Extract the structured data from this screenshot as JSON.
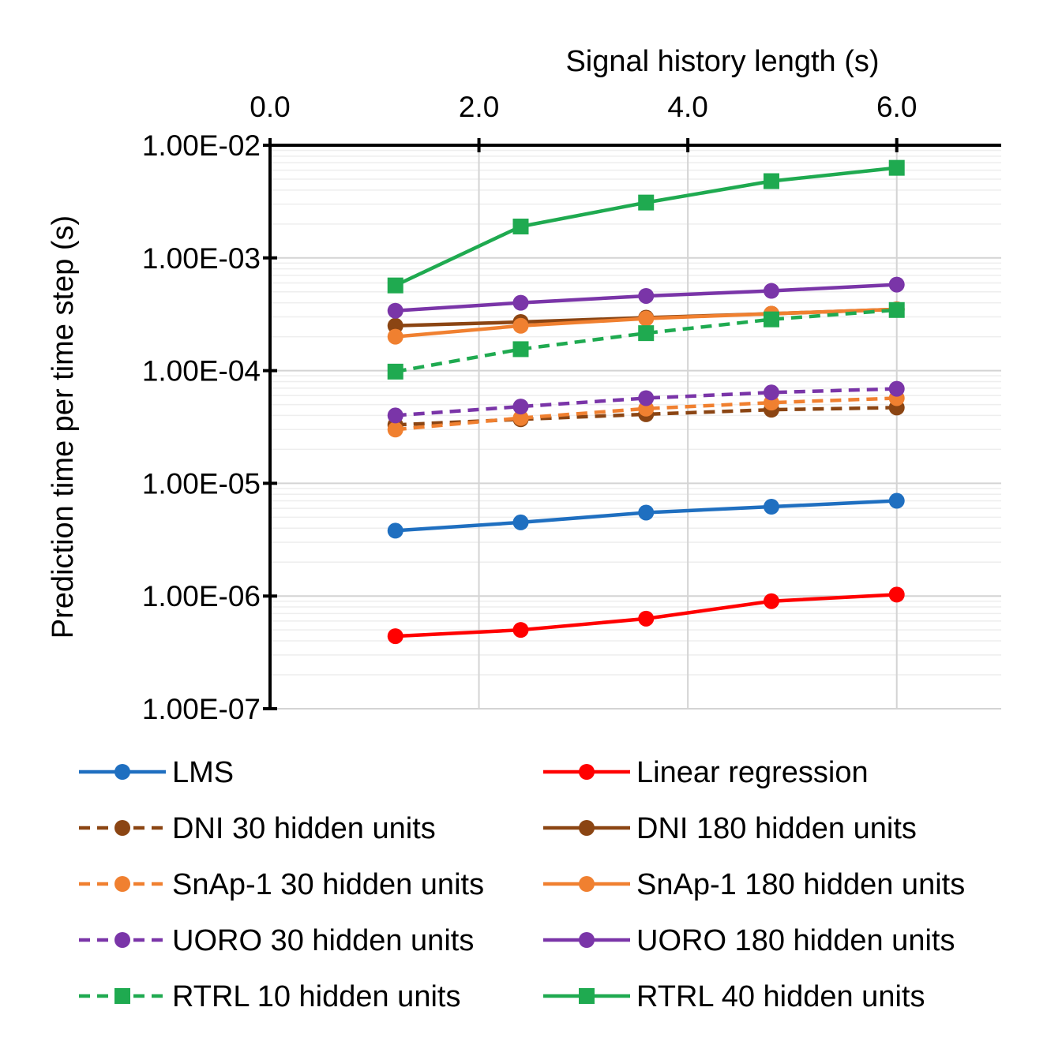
{
  "chart_data": {
    "type": "line",
    "title": "",
    "xlabel": "Signal history length (s)",
    "ylabel": "Prediction time per time step (s)",
    "xlim": [
      0,
      7
    ],
    "ylim": [
      1e-07,
      0.01
    ],
    "y_scale": "log",
    "x_axis_position": "top",
    "grid": true,
    "legend_position": "bottom",
    "x_tick_labels": [
      "0.0",
      "2.0",
      "4.0",
      "6.0"
    ],
    "y_tick_labels": [
      "1.00E-02",
      "1.00E-03",
      "1.00E-04",
      "1.00E-05",
      "1.00E-06",
      "1.00E-07"
    ],
    "x": [
      1.2,
      2.4,
      3.6,
      4.8,
      6.0
    ],
    "series": [
      {
        "name": "LMS",
        "color": "#1f6fc0",
        "dash": "solid",
        "marker": "circle",
        "values": [
          3.8e-06,
          4.5e-06,
          5.5e-06,
          6.2e-06,
          7e-06
        ]
      },
      {
        "name": "Linear regression",
        "color": "#ff0000",
        "dash": "solid",
        "marker": "circle",
        "values": [
          4.4e-07,
          5e-07,
          6.3e-07,
          9e-07,
          1.03e-06
        ]
      },
      {
        "name": "DNI 30 hidden units",
        "color": "#8b4513",
        "dash": "dashed",
        "marker": "circle",
        "values": [
          3.3e-05,
          3.7e-05,
          4.1e-05,
          4.5e-05,
          4.7e-05
        ]
      },
      {
        "name": "DNI 180 hidden units",
        "color": "#8b4513",
        "dash": "solid",
        "marker": "circle",
        "values": [
          0.00025,
          0.00027,
          0.000295,
          0.00032,
          0.00035
        ]
      },
      {
        "name": "SnAp-1 30 hidden units",
        "color": "#f08030",
        "dash": "dashed",
        "marker": "circle",
        "values": [
          3e-05,
          3.8e-05,
          4.6e-05,
          5.2e-05,
          5.7e-05
        ]
      },
      {
        "name": "SnAp-1 180 hidden units",
        "color": "#f08030",
        "dash": "solid",
        "marker": "circle",
        "values": [
          0.0002,
          0.00025,
          0.00029,
          0.00032,
          0.00035
        ]
      },
      {
        "name": "UORO 30 hidden units",
        "color": "#7a35a8",
        "dash": "dashed",
        "marker": "circle",
        "values": [
          4e-05,
          4.8e-05,
          5.7e-05,
          6.4e-05,
          6.9e-05
        ]
      },
      {
        "name": "UORO 180 hidden units",
        "color": "#7a35a8",
        "dash": "solid",
        "marker": "circle",
        "values": [
          0.00034,
          0.0004,
          0.00046,
          0.00051,
          0.00058
        ]
      },
      {
        "name": "RTRL 10 hidden units",
        "color": "#1faa50",
        "dash": "dashed",
        "marker": "square",
        "values": [
          9.8e-05,
          0.000155,
          0.000215,
          0.000285,
          0.000345
        ]
      },
      {
        "name": "RTRL 40 hidden units",
        "color": "#1faa50",
        "dash": "solid",
        "marker": "square",
        "values": [
          0.00057,
          0.0019,
          0.0031,
          0.0048,
          0.0063
        ]
      }
    ]
  }
}
